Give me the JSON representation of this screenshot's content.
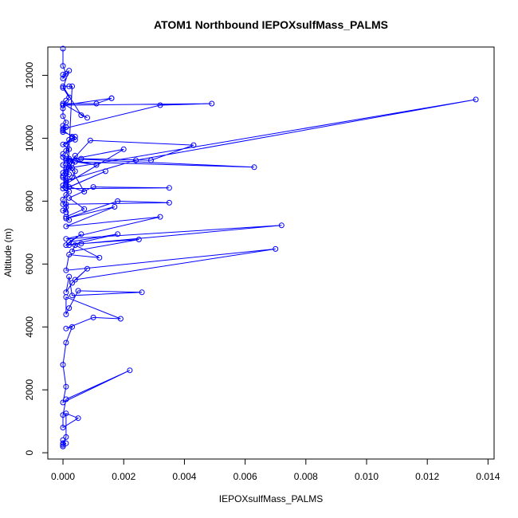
{
  "chart_data": {
    "type": "line",
    "title": "ATOM1 Northbound IEPOXsulfMass_PALMS",
    "xlabel": "IEPOXsulfMass_PALMS",
    "ylabel": "Altitude (m)",
    "xlim": [
      -0.0005,
      0.0142
    ],
    "ylim": [
      -200,
      12900
    ],
    "x_ticks": [
      0,
      0.002,
      0.004,
      0.006,
      0.008,
      0.01,
      0.012,
      0.014
    ],
    "x_tick_labels": [
      "0.000",
      "0.002",
      "0.004",
      "0.006",
      "0.008",
      "0.010",
      "0.012",
      "0.014"
    ],
    "y_ticks": [
      0,
      2000,
      4000,
      6000,
      8000,
      10000,
      12000
    ],
    "y_tick_labels": [
      "0",
      "2000",
      "4000",
      "6000",
      "8000",
      "10000",
      "12000"
    ],
    "grid": false,
    "series_color": "#0000ff",
    "series": [
      {
        "x": [
          0,
          0,
          0.0001,
          0,
          0,
          0.0002,
          0,
          0.0002,
          0,
          0.0001,
          0,
          0,
          0.0001,
          0,
          0,
          0.0003,
          0.0004,
          0,
          0.0002,
          0,
          0,
          0.0001,
          0,
          0.0003,
          0.0001,
          0,
          0.0002,
          0,
          0.0001,
          0,
          0,
          0.0002,
          0.0001,
          0,
          0,
          0.0001,
          0,
          0.0001,
          0.0003,
          0.0002,
          0,
          0.0006,
          0.0008,
          0,
          0.0011,
          0.0016,
          0.0016,
          0,
          0.0049,
          0.0032,
          0,
          0.0001,
          0,
          0.0004,
          0.0003,
          0.0001,
          0.0002,
          0.0001,
          0.0002,
          0.0063,
          0.0004,
          0.0011,
          0.0001,
          0.0002,
          0.0001,
          0.0001,
          0.0001,
          0,
          0.0001,
          0.0001,
          0.0024,
          0.0136,
          0.0002,
          0.0004,
          0.0003,
          0.0006,
          0.0029,
          0.0043,
          0.0009,
          0.0002,
          0.0004,
          0.0003,
          0.0001,
          0.0001,
          0.002,
          0.0001,
          0.0007,
          0.0001,
          0.0002,
          0.0014,
          0.0001,
          0.0035,
          0.001,
          0.0002,
          0.0007,
          0.0001,
          0.0002,
          0.0001,
          0.0035,
          0.0018,
          0.0001,
          0.0017,
          0.0001,
          0.0032,
          0.0001,
          0.0072,
          0.0001,
          0.0006,
          0.0002,
          0.0018,
          0.0002,
          0.0006,
          0.0025,
          0.0003,
          0.0004,
          0.0012,
          0.0002,
          0.0001,
          0.007,
          0.0004,
          0.0008,
          0.0003,
          0.0001,
          0.0002,
          0.0003,
          0.0026,
          0.0005,
          0.0002,
          0.0001,
          0.0001,
          0.0019,
          0.001,
          0.0001,
          0.0003,
          0.0001,
          0,
          0.0001,
          0,
          0.0022,
          0.0001,
          0,
          0,
          0.0005,
          0.0001,
          0.0001,
          0,
          0,
          0,
          0,
          0.0001,
          0
        ],
        "y": [
          12850,
          12300,
          12050,
          12020,
          11900,
          12150,
          11600,
          11300,
          11050,
          11200,
          10950,
          10700,
          10500,
          10400,
          10250,
          10050,
          9950,
          9800,
          9650,
          9500,
          9400,
          9300,
          9150,
          9050,
          9000,
          8900,
          8850,
          8750,
          8650,
          8500,
          8400,
          8300,
          8200,
          8050,
          7900,
          7800,
          7700,
          7650,
          11650,
          11650,
          11650,
          10730,
          10650,
          11100,
          11100,
          11270,
          11270,
          11050,
          11100,
          11050,
          10300,
          10350,
          10200,
          10050,
          10000,
          9800,
          9950,
          9600,
          9350,
          9080,
          9250,
          9150,
          9350,
          9300,
          9050,
          8950,
          8900,
          8800,
          8700,
          8650,
          9300,
          11230,
          9050,
          9450,
          9200,
          9350,
          9300,
          9780,
          9930,
          9200,
          8950,
          8750,
          8600,
          8550,
          9650,
          9300,
          8300,
          8500,
          8450,
          8950,
          8400,
          8420,
          8450,
          8100,
          7750,
          7500,
          7400,
          7900,
          7950,
          8000,
          7450,
          7820,
          7200,
          7500,
          6800,
          7230,
          6600,
          6950,
          6700,
          6950,
          6600,
          6650,
          6780,
          6400,
          6600,
          6200,
          6300,
          5800,
          6480,
          5500,
          5850,
          5400,
          5100,
          5600,
          5000,
          5100,
          5150,
          4600,
          4400,
          4950,
          4260,
          4300,
          3950,
          4000,
          3500,
          2800,
          2100,
          1600,
          2620,
          1700,
          1200,
          800,
          1100,
          1250,
          500,
          300,
          200,
          400,
          250,
          300,
          200
        ]
      }
    ]
  }
}
